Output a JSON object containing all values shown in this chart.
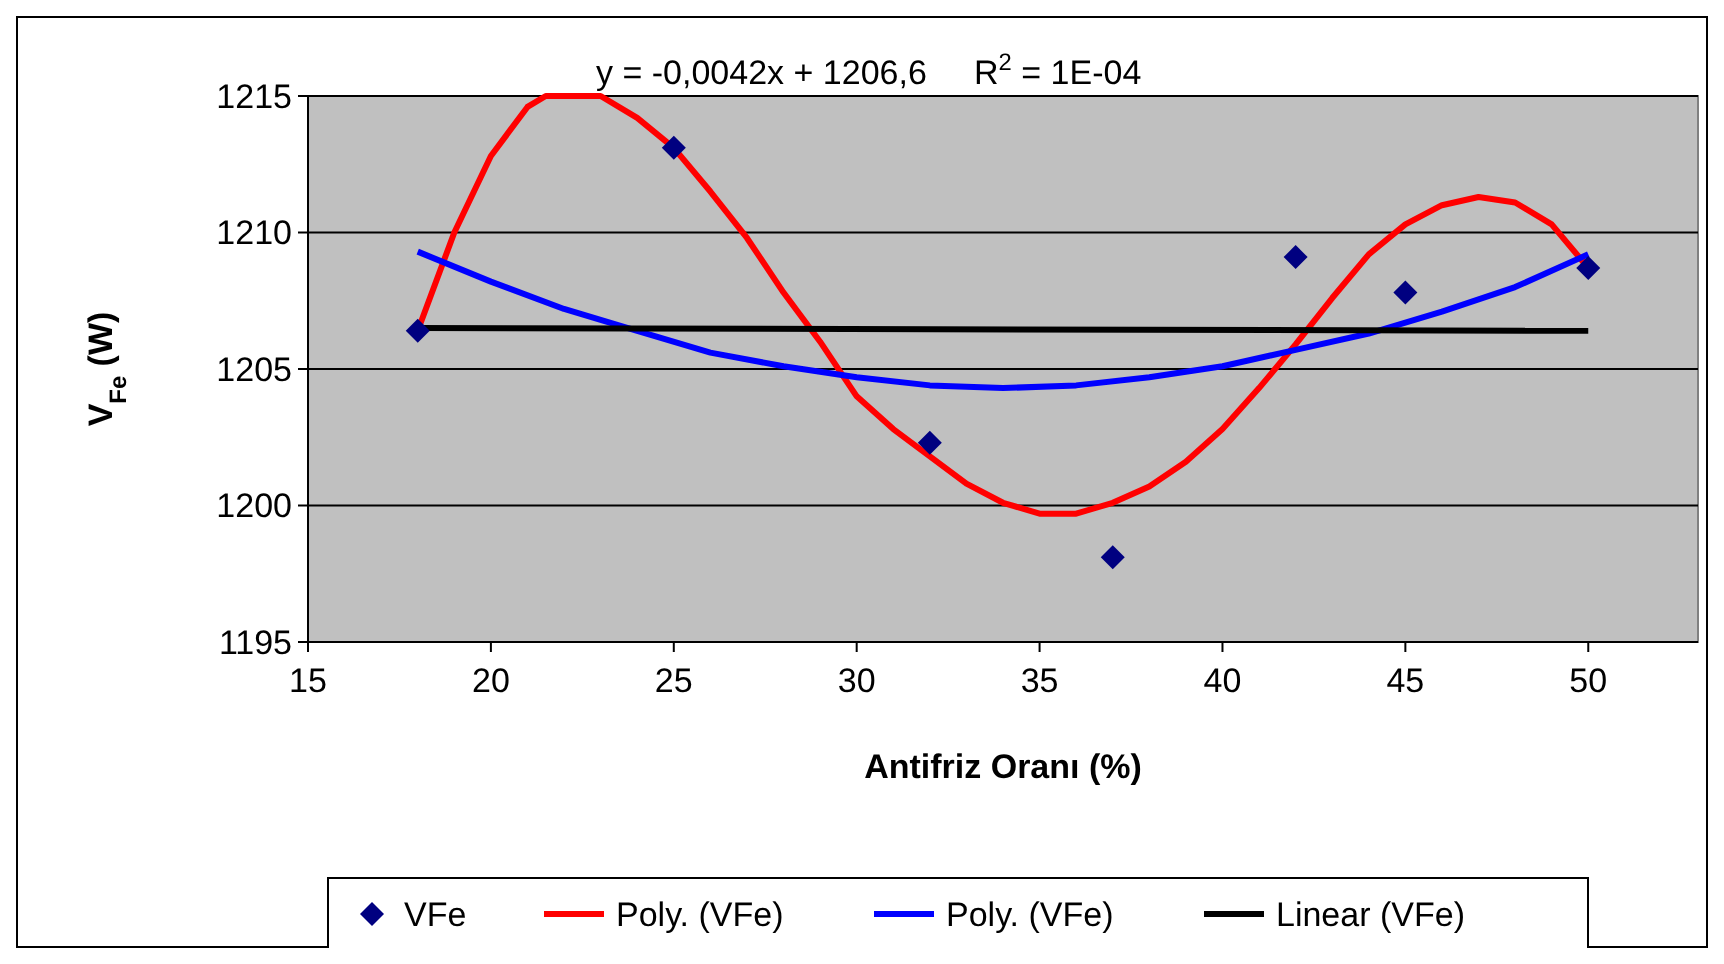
{
  "chart_data": {
    "type": "scatter",
    "xlabel": "Antifriz Oranı (%)",
    "ylabel": "V$_{Fe}$ (W)",
    "annotations": [
      "y = -0,0042x + 1206,6     R$^{2}$ = 1E-04"
    ],
    "xlim": [
      15,
      53
    ],
    "xticks": [
      15,
      20,
      25,
      30,
      35,
      40,
      45,
      50
    ],
    "ylim": [
      1195,
      1215
    ],
    "yticks": [
      1195,
      1200,
      1205,
      1210,
      1215
    ],
    "grid": "y",
    "legend": "bottom",
    "series": [
      {
        "name": "VFe",
        "marker": "diamond",
        "color": "#000080",
        "x": [
          18,
          25,
          32,
          37,
          42,
          45,
          50
        ],
        "values": [
          1206.4,
          1213.1,
          1202.3,
          1198.1,
          1209.1,
          1207.8,
          1208.7
        ]
      },
      {
        "name": "Poly. (VFe)",
        "type": "line",
        "color": "#ff0000",
        "x": [
          18,
          19,
          20,
          21,
          21.5,
          23,
          24,
          25,
          26,
          27,
          28,
          29,
          30,
          31,
          32,
          33,
          34,
          35,
          36,
          37,
          38,
          39,
          40,
          41,
          42,
          43,
          44,
          45,
          46,
          47,
          48,
          49,
          50
        ],
        "values": [
          1206.4,
          1210,
          1212.8,
          1214.6,
          1215,
          1215,
          1214.2,
          1213.1,
          1211.5,
          1209.8,
          1207.8,
          1206,
          1204,
          1202.8,
          1201.8,
          1200.8,
          1200.1,
          1199.7,
          1199.7,
          1200.1,
          1200.7,
          1201.6,
          1202.8,
          1204.3,
          1205.9,
          1207.6,
          1209.2,
          1210.3,
          1211,
          1211.3,
          1211.1,
          1210.3,
          1208.7
        ]
      },
      {
        "name": "Poly. (VFe)",
        "type": "line",
        "color": "#0000ff",
        "x": [
          18,
          20,
          22,
          24,
          26,
          28,
          30,
          32,
          34,
          36,
          38,
          40,
          42,
          44,
          46,
          48,
          50
        ],
        "values": [
          1209.3,
          1208.2,
          1207.2,
          1206.4,
          1205.6,
          1205.1,
          1204.7,
          1204.4,
          1204.3,
          1204.4,
          1204.7,
          1205.1,
          1205.7,
          1206.3,
          1207.1,
          1208,
          1209.2
        ]
      },
      {
        "name": "Linear (VFe)",
        "type": "line",
        "color": "#000000",
        "x": [
          18,
          50
        ],
        "values": [
          1206.5,
          1206.4
        ]
      }
    ]
  }
}
